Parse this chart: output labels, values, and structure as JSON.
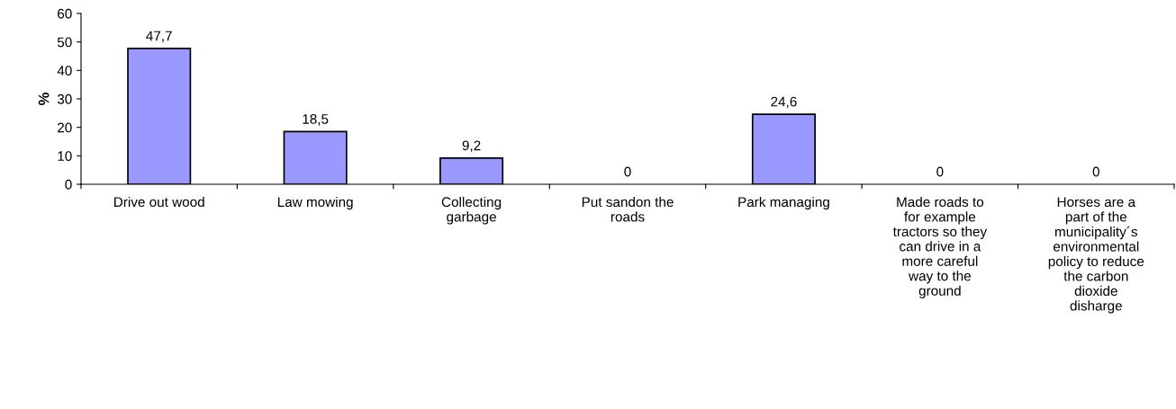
{
  "chart_data": {
    "type": "bar",
    "ylabel": "%",
    "categories": [
      "Drive out wood",
      "Law mowing",
      "Collecting\ngarbage",
      "Put sandon the\nroads",
      "Park managing",
      "Made roads to\nfor example\ntractors so they\ncan drive in a\nmore careful\nway to the\nground",
      "Horses are a\npart of the\nmunicipality´s\nenvironmental\npolicy to reduce\nthe carbon\ndioxide\ndisharge"
    ],
    "values": [
      47.7,
      18.5,
      9.2,
      0,
      24.6,
      0,
      0
    ],
    "value_labels": [
      "47,7",
      "18,5",
      "9,2",
      "0",
      "24,6",
      "0",
      "0"
    ],
    "color": "#9999ff",
    "ylim": [
      0,
      60
    ],
    "yticks": [
      0,
      10,
      20,
      30,
      40,
      50,
      60
    ],
    "grid": false,
    "legend": false
  }
}
